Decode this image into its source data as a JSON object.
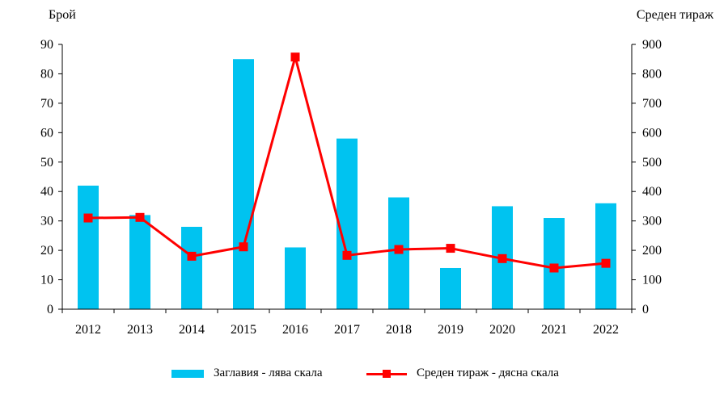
{
  "chart_data": {
    "type": "bar-line",
    "ylabel_left": "Брой",
    "ylabel_right": "Среден тираж",
    "categories": [
      "2012",
      "2013",
      "2014",
      "2015",
      "2016",
      "2017",
      "2018",
      "2019",
      "2020",
      "2021",
      "2022"
    ],
    "y_left_ticks": [
      "0",
      "10",
      "20",
      "30",
      "40",
      "50",
      "60",
      "70",
      "80",
      "90"
    ],
    "y_right_ticks": [
      "0",
      "100",
      "200",
      "300",
      "400",
      "500",
      "600",
      "700",
      "800",
      "900"
    ],
    "ylim_left": [
      0,
      90
    ],
    "ylim_right": [
      0,
      900
    ],
    "grid": false,
    "legend_position": "bottom",
    "series": [
      {
        "name": "Заглавия - лява скала",
        "type": "bar",
        "axis": "left",
        "color": "#00c3f0",
        "values": [
          42,
          32,
          28,
          85,
          21,
          58,
          38,
          14,
          35,
          31,
          36
        ]
      },
      {
        "name": "Среден тираж - дясна скала",
        "type": "line",
        "axis": "right",
        "color": "#ff0000",
        "values": [
          310,
          312,
          180,
          212,
          857,
          183,
          203,
          207,
          172,
          140,
          156
        ]
      }
    ]
  }
}
